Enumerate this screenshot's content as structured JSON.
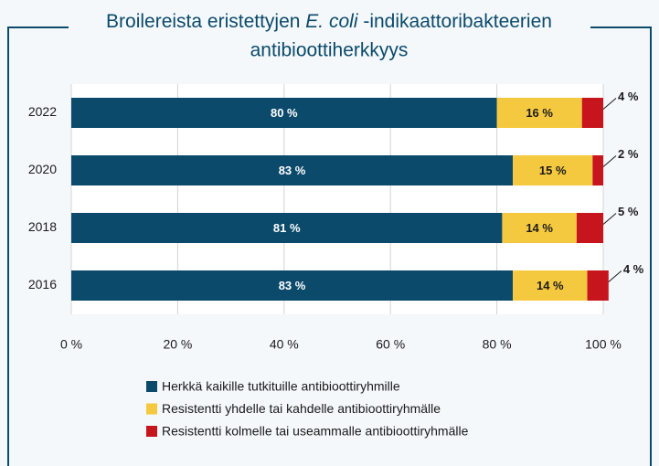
{
  "chart_data": {
    "type": "stacked-barh",
    "title": [
      "Broilereista eristettyjen",
      "E. coli",
      "-indikaattoribakteerien",
      "antibioottiherkkyys"
    ],
    "categories": [
      "2022",
      "2020",
      "2018",
      "2016"
    ],
    "series": [
      {
        "name": "Herkkä kaikille tutkituille antibioottiryhmille",
        "color": "#0b4a6b",
        "values": [
          80,
          83,
          81,
          83
        ],
        "value_labels": [
          "80 %",
          "83 %",
          "81 %",
          "83 %"
        ]
      },
      {
        "name": "Resistentti yhdelle tai kahdelle antibioottiryhmälle",
        "color": "#f5c93f",
        "values": [
          16,
          15,
          14,
          14
        ],
        "value_labels": [
          "16 %",
          "15 %",
          "14 %",
          "14 %"
        ]
      },
      {
        "name": "Resistentti kolmelle tai useammalle antibioottiryhmälle",
        "color": "#c7151d",
        "values": [
          4,
          2,
          5,
          4
        ],
        "value_labels": [
          "4 %",
          "2 %",
          "5 %",
          "4 %"
        ]
      }
    ],
    "xlim": [
      0,
      100
    ],
    "xticks": [
      {
        "value": 0,
        "label": "0 %"
      },
      {
        "value": 20,
        "label": "20 %"
      },
      {
        "value": 40,
        "label": "40 %"
      },
      {
        "value": 60,
        "label": "60 %"
      },
      {
        "value": 80,
        "label": "80 %"
      },
      {
        "value": 100,
        "label": "100 %"
      }
    ],
    "grid": true
  }
}
